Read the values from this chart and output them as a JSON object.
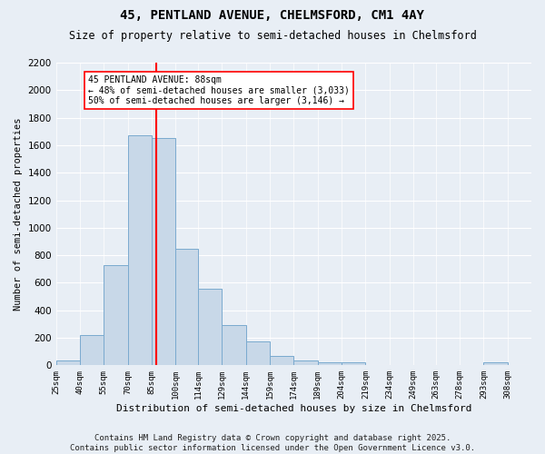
{
  "title": "45, PENTLAND AVENUE, CHELMSFORD, CM1 4AY",
  "subtitle": "Size of property relative to semi-detached houses in Chelmsford",
  "xlabel": "Distribution of semi-detached houses by size in Chelmsford",
  "ylabel": "Number of semi-detached properties",
  "bar_color": "#c8d8e8",
  "bar_edge_color": "#7aaacf",
  "background_color": "#e8eef5",
  "grid_color": "#ffffff",
  "vline_x": 88,
  "vline_color": "red",
  "annotation_text": "45 PENTLAND AVENUE: 88sqm\n← 48% of semi-detached houses are smaller (3,033)\n50% of semi-detached houses are larger (3,146) →",
  "annotation_box_color": "white",
  "annotation_box_edge": "red",
  "bin_edges": [
    25,
    40,
    55,
    70,
    85,
    100,
    114,
    129,
    144,
    159,
    174,
    189,
    204,
    219,
    234,
    249,
    263,
    278,
    293,
    308,
    323
  ],
  "bin_counts": [
    35,
    220,
    730,
    1670,
    1650,
    845,
    555,
    295,
    175,
    65,
    35,
    25,
    20,
    5,
    0,
    0,
    0,
    5,
    20,
    0
  ],
  "ylim": [
    0,
    2200
  ],
  "yticks": [
    0,
    200,
    400,
    600,
    800,
    1000,
    1200,
    1400,
    1600,
    1800,
    2000,
    2200
  ],
  "footer": "Contains HM Land Registry data © Crown copyright and database right 2025.\nContains public sector information licensed under the Open Government Licence v3.0.",
  "footer_fontsize": 6.5,
  "title_fontsize": 10,
  "subtitle_fontsize": 8.5
}
